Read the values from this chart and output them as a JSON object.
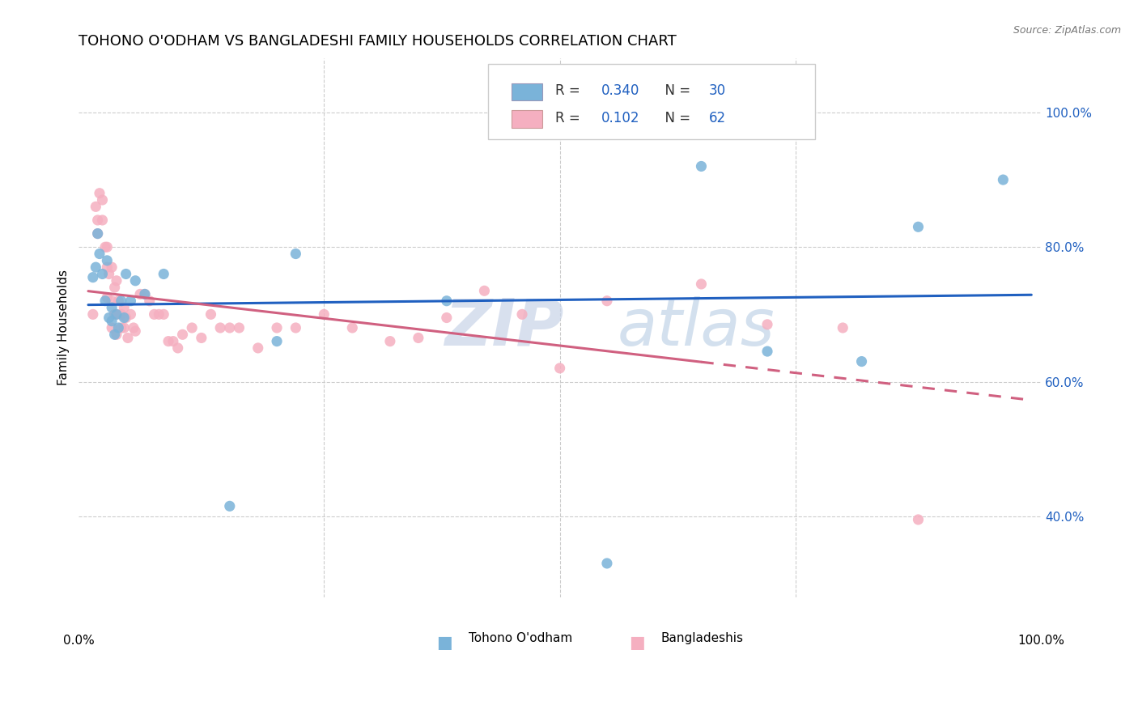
{
  "title": "TOHONO O'ODHAM VS BANGLADESHI FAMILY HOUSEHOLDS CORRELATION CHART",
  "source": "Source: ZipAtlas.com",
  "ylabel": "Family Households",
  "y_ticks": [
    0.4,
    0.6,
    0.8,
    1.0
  ],
  "y_tick_labels": [
    "40.0%",
    "60.0%",
    "80.0%",
    "100.0%"
  ],
  "legend_r1_val": "0.340",
  "legend_n1_val": "30",
  "legend_r2_val": "0.102",
  "legend_n2_val": "62",
  "blue_color": "#7ab3d9",
  "pink_color": "#f5afc0",
  "line_blue": "#2060c0",
  "line_pink": "#d06080",
  "watermark_zip_color": "#c8d4e8",
  "watermark_atlas_color": "#b0c8e0",
  "grid_color": "#cccccc",
  "tohono_x": [
    0.005,
    0.008,
    0.01,
    0.012,
    0.015,
    0.018,
    0.02,
    0.022,
    0.025,
    0.025,
    0.028,
    0.03,
    0.032,
    0.035,
    0.038,
    0.04,
    0.045,
    0.05,
    0.06,
    0.08,
    0.15,
    0.2,
    0.22,
    0.38,
    0.55,
    0.65,
    0.72,
    0.82,
    0.88,
    0.97
  ],
  "tohono_y": [
    0.755,
    0.77,
    0.82,
    0.79,
    0.76,
    0.72,
    0.78,
    0.695,
    0.69,
    0.71,
    0.67,
    0.7,
    0.68,
    0.72,
    0.695,
    0.76,
    0.72,
    0.75,
    0.73,
    0.76,
    0.415,
    0.66,
    0.79,
    0.72,
    0.33,
    0.92,
    0.645,
    0.63,
    0.83,
    0.9
  ],
  "bangladeshi_x": [
    0.005,
    0.008,
    0.01,
    0.01,
    0.012,
    0.015,
    0.015,
    0.018,
    0.02,
    0.02,
    0.02,
    0.022,
    0.025,
    0.025,
    0.025,
    0.028,
    0.028,
    0.03,
    0.03,
    0.03,
    0.032,
    0.035,
    0.035,
    0.038,
    0.038,
    0.04,
    0.042,
    0.045,
    0.048,
    0.05,
    0.055,
    0.06,
    0.065,
    0.07,
    0.075,
    0.08,
    0.085,
    0.09,
    0.095,
    0.1,
    0.11,
    0.12,
    0.13,
    0.14,
    0.15,
    0.16,
    0.18,
    0.2,
    0.22,
    0.25,
    0.28,
    0.32,
    0.35,
    0.38,
    0.42,
    0.46,
    0.5,
    0.55,
    0.65,
    0.72,
    0.8,
    0.88
  ],
  "bangladeshi_y": [
    0.7,
    0.86,
    0.84,
    0.82,
    0.88,
    0.87,
    0.84,
    0.8,
    0.8,
    0.77,
    0.725,
    0.76,
    0.77,
    0.72,
    0.68,
    0.7,
    0.74,
    0.75,
    0.7,
    0.67,
    0.72,
    0.7,
    0.68,
    0.68,
    0.71,
    0.695,
    0.665,
    0.7,
    0.68,
    0.675,
    0.73,
    0.73,
    0.72,
    0.7,
    0.7,
    0.7,
    0.66,
    0.66,
    0.65,
    0.67,
    0.68,
    0.665,
    0.7,
    0.68,
    0.68,
    0.68,
    0.65,
    0.68,
    0.68,
    0.7,
    0.68,
    0.66,
    0.665,
    0.695,
    0.735,
    0.7,
    0.62,
    0.72,
    0.745,
    0.685,
    0.68,
    0.395
  ]
}
